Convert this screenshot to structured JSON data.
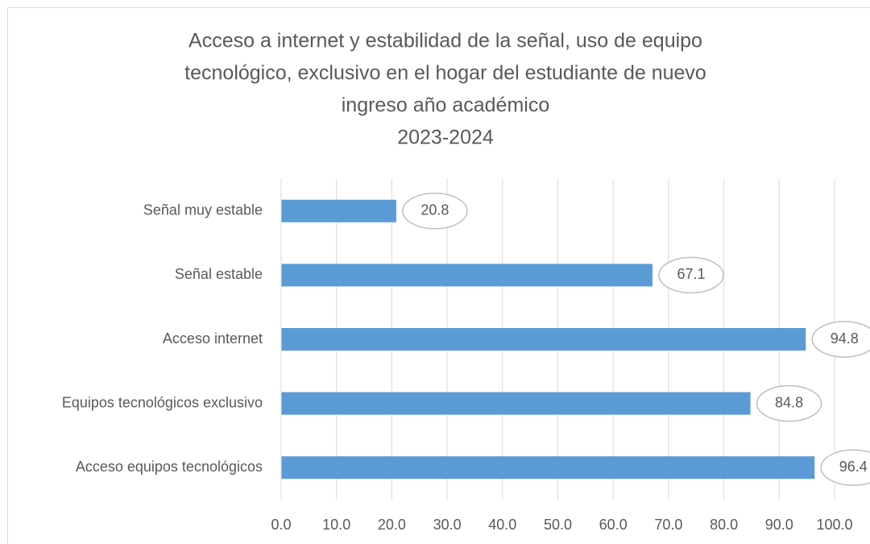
{
  "chart_data": {
    "type": "bar",
    "orientation": "horizontal",
    "title": [
      "Acceso a internet y estabilidad de la señal, uso de equipo",
      "tecnológico, exclusivo en el hogar del estudiante de nuevo",
      "ingreso año académico",
      "2023-2024"
    ],
    "categories": [
      "Señal muy estable",
      "Señal estable",
      "Acceso internet",
      "Equipos tecnológicos exclusivo",
      "Acceso equipos tecnológicos"
    ],
    "values": [
      20.8,
      67.1,
      94.8,
      84.8,
      96.4
    ],
    "color": "#5b9bd5",
    "xlim": [
      0,
      100
    ],
    "xticks": [
      {
        "value": 0,
        "label": "0.0"
      },
      {
        "value": 10,
        "label": "10.0"
      },
      {
        "value": 20,
        "label": "20.0"
      },
      {
        "value": 30,
        "label": "30.0"
      },
      {
        "value": 40,
        "label": "40.0"
      },
      {
        "value": 50,
        "label": "50.0"
      },
      {
        "value": 60,
        "label": "60.0"
      },
      {
        "value": 70,
        "label": "70.0"
      },
      {
        "value": 80,
        "label": "80.0"
      },
      {
        "value": 90,
        "label": "90.0"
      },
      {
        "value": 100,
        "label": "100.0"
      }
    ],
    "grid": true
  }
}
